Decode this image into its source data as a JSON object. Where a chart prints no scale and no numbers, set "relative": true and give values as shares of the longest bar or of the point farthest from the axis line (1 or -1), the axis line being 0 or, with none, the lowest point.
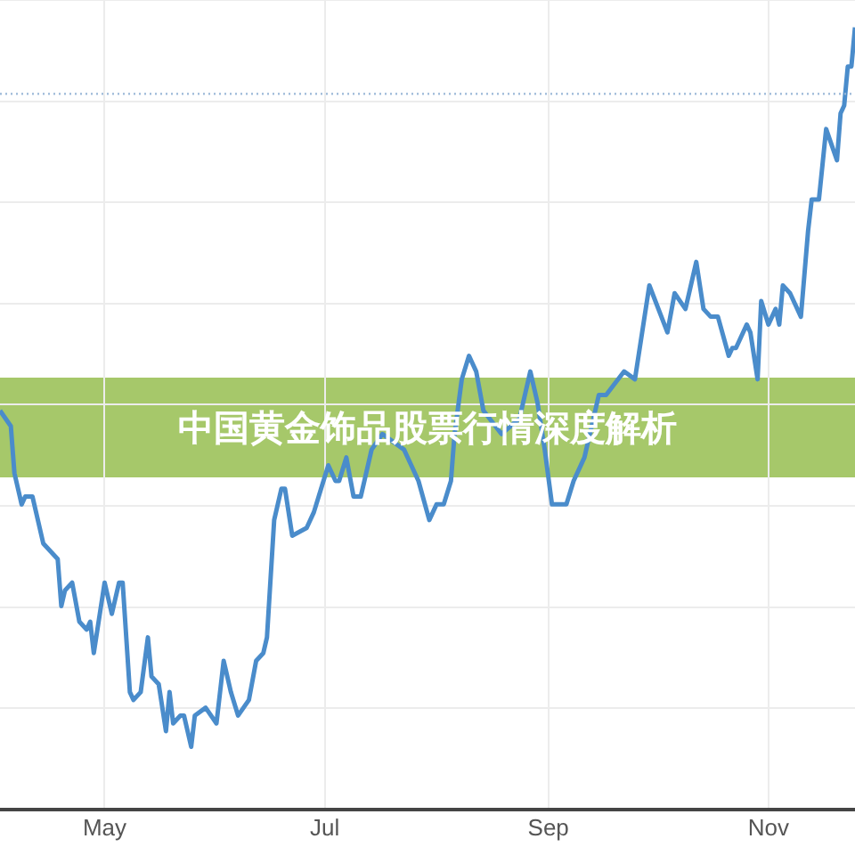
{
  "chart_data": {
    "type": "line",
    "title": "中国黄金饰品股票行情深度解析",
    "relative": true,
    "x": [
      "--04-02",
      "--04-05",
      "--04-06",
      "--04-08",
      "--04-09",
      "--04-11",
      "--04-14",
      "--04-16",
      "--04-18",
      "--04-19",
      "--04-20",
      "--04-22",
      "--04-24",
      "--04-26",
      "--04-27",
      "--04-28",
      "--05-01",
      "--05-03",
      "--05-05",
      "--05-06",
      "--05-08",
      "--05-09",
      "--05-11",
      "--05-13",
      "--05-14",
      "--05-16",
      "--05-18",
      "--05-19",
      "--05-20",
      "--05-22",
      "--05-23",
      "--05-25",
      "--05-26",
      "--05-29",
      "--06-01",
      "--06-03",
      "--06-05",
      "--06-07",
      "--06-10",
      "--06-12",
      "--06-14",
      "--06-15",
      "--06-17",
      "--06-19",
      "--06-20",
      "--06-22",
      "--06-26",
      "--06-28",
      "--06-30",
      "--07-02",
      "--07-04",
      "--07-05",
      "--07-07",
      "--07-09",
      "--07-11",
      "--07-14",
      "--07-17",
      "--07-23",
      "--07-27",
      "--07-30",
      "--08-01",
      "--08-03",
      "--08-05",
      "--08-06",
      "--08-08",
      "--08-10",
      "--08-12",
      "--08-14",
      "--08-19",
      "--08-24",
      "--08-27",
      "--08-29",
      "--08-31",
      "--09-02",
      "--09-04",
      "--09-06",
      "--09-08",
      "--09-11",
      "--09-15",
      "--09-17",
      "--09-22",
      "--09-25",
      "--09-29",
      "--10-04",
      "--10-06",
      "--10-09",
      "--10-12",
      "--10-14",
      "--10-16",
      "--10-18",
      "--10-21",
      "--10-22",
      "--10-23",
      "--10-26",
      "--10-27",
      "--10-29",
      "--10-30",
      "--11-01",
      "--11-03",
      "--11-04",
      "--11-05",
      "--11-07",
      "--11-10",
      "--11-12",
      "--11-13",
      "--11-15",
      "--11-17",
      "--11-20",
      "--11-21",
      "--11-22",
      "--11-23",
      "--11-24",
      "--11-25"
    ],
    "series": [
      {
        "color": "#4a8ccb",
        "values": [
          0.51,
          0.49,
          0.43,
          0.39,
          0.4,
          0.4,
          0.34,
          0.33,
          0.32,
          0.26,
          0.28,
          0.29,
          0.24,
          0.23,
          0.24,
          0.2,
          0.29,
          0.25,
          0.29,
          0.29,
          0.15,
          0.14,
          0.15,
          0.22,
          0.17,
          0.16,
          0.1,
          0.15,
          0.11,
          0.12,
          0.12,
          0.08,
          0.12,
          0.13,
          0.11,
          0.19,
          0.15,
          0.12,
          0.14,
          0.19,
          0.2,
          0.22,
          0.37,
          0.41,
          0.41,
          0.35,
          0.36,
          0.38,
          0.41,
          0.44,
          0.42,
          0.42,
          0.45,
          0.4,
          0.4,
          0.46,
          0.48,
          0.46,
          0.42,
          0.37,
          0.39,
          0.39,
          0.42,
          0.48,
          0.55,
          0.58,
          0.56,
          0.51,
          0.48,
          0.5,
          0.56,
          0.52,
          0.46,
          0.39,
          0.39,
          0.39,
          0.42,
          0.45,
          0.53,
          0.53,
          0.56,
          0.55,
          0.67,
          0.61,
          0.66,
          0.64,
          0.7,
          0.64,
          0.63,
          0.63,
          0.58,
          0.59,
          0.59,
          0.62,
          0.61,
          0.55,
          0.65,
          0.62,
          0.64,
          0.62,
          0.67,
          0.66,
          0.63,
          0.74,
          0.78,
          0.78,
          0.87,
          0.83,
          0.89,
          0.9,
          0.95,
          0.95,
          1.0
        ]
      }
    ],
    "xlim": [
      "--04-02",
      "--11-25"
    ],
    "xticks": [
      {
        "value": "--05-01",
        "label": "May"
      },
      {
        "value": "--07-01",
        "label": "Jul"
      },
      {
        "value": "--09-01",
        "label": "Sep"
      },
      {
        "value": "--11-01",
        "label": "Nov"
      }
    ],
    "ref_lines": [
      {
        "axis": "y",
        "value": 0.915,
        "color": "#9ab8d8",
        "line_style": "dotted"
      }
    ],
    "grid": true,
    "marker": "none",
    "line_style": "solid",
    "legend": false
  }
}
